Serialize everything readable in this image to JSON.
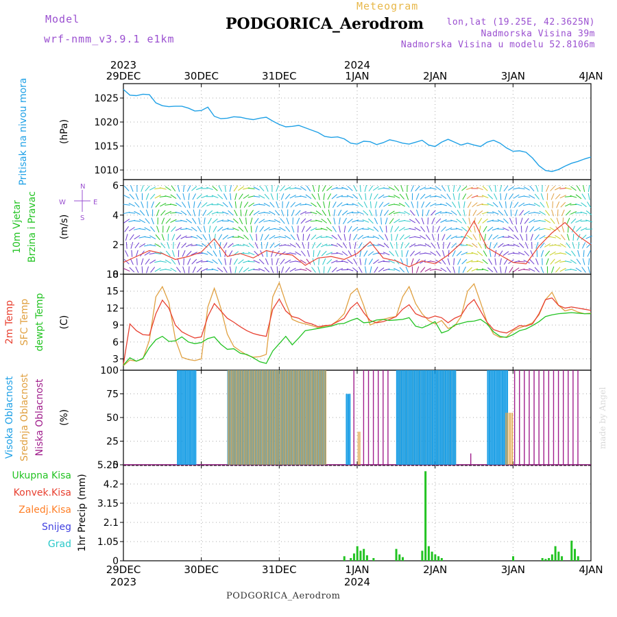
{
  "header": {
    "model_label": "Model",
    "model_value": "wrf-nmm_v3.9.1 e1km",
    "meteogram_label": "Meteogram",
    "station_title": "PODGORICA_Aerodrom",
    "lonlat": "lon,lat (19.25E, 42.3625N)",
    "altitude": "Nadmorska Visina 39m",
    "model_altitude": "Nadmorska Visina u modelu 52.8106m"
  },
  "footer": {
    "station": "PODGORICA_Aerodrom",
    "watermark": "made by Angel"
  },
  "colors": {
    "pressure": "#1ea0e6",
    "t2m": "#e84030",
    "tsfc": "#e0a040",
    "dewpt": "#22c322",
    "cloud_high": "#1ea0e6",
    "cloud_mid": "#e0a040",
    "cloud_low": "#a01e8c",
    "precip_total": "#22c322",
    "precip_conv": "#e84030",
    "precip_frozen": "#ff7f27",
    "snow": "#4040e0",
    "grad": "#28c8c8",
    "grid": "#aaaaaa"
  },
  "chart_data": [
    {
      "type": "line",
      "id": "pressure",
      "ylabel": "(hPa)",
      "side_labels": [
        {
          "text": "Pritisak na nivou mora",
          "color": "#1ea0e6"
        }
      ],
      "ylim": [
        1008,
        1028
      ],
      "yticks": [
        1010,
        1015,
        1020,
        1025
      ],
      "x_hours": [
        0,
        2,
        4,
        6,
        8,
        10,
        12,
        14,
        16,
        18,
        20,
        22,
        24,
        26,
        28,
        30,
        32,
        34,
        36,
        38,
        40,
        42,
        44,
        46,
        48,
        50,
        52,
        54,
        56,
        58,
        60,
        62,
        64,
        66,
        68,
        70,
        72,
        74,
        76,
        78,
        80,
        82,
        84,
        86,
        88,
        90,
        92,
        94,
        96,
        98,
        100,
        102,
        104,
        106,
        108,
        110,
        112,
        114,
        116,
        118,
        120,
        122,
        124,
        126,
        128,
        130,
        132,
        134,
        136,
        138,
        140,
        142,
        144
      ],
      "series": [
        {
          "values": [
            1026.8,
            1025.6,
            1025.5,
            1025.8,
            1025.7,
            1024.0,
            1023.4,
            1023.2,
            1023.3,
            1023.3,
            1022.9,
            1022.3,
            1022.4,
            1023.1,
            1021.2,
            1020.7,
            1020.8,
            1021.1,
            1021.0,
            1020.7,
            1020.5,
            1020.8,
            1021.0,
            1020.2,
            1019.5,
            1019.0,
            1019.1,
            1019.3,
            1018.8,
            1018.3,
            1017.8,
            1017.0,
            1016.8,
            1016.9,
            1016.5,
            1015.6,
            1015.4,
            1016.0,
            1015.9,
            1015.3,
            1015.7,
            1016.3,
            1016.0,
            1015.6,
            1015.4,
            1015.8,
            1016.2,
            1015.2,
            1014.9,
            1015.8,
            1016.4,
            1015.8,
            1015.2,
            1015.6,
            1015.2,
            1014.9,
            1015.8,
            1016.2,
            1015.6,
            1014.6,
            1013.9,
            1014.0,
            1013.7,
            1012.5,
            1010.9,
            1009.9,
            1009.7,
            1010.1,
            1010.8,
            1011.4,
            1011.8,
            1012.3,
            1012.7
          ]
        }
      ]
    },
    {
      "type": "line",
      "id": "wind",
      "ylabel": "(m/s)",
      "side_labels": [
        {
          "text": "10m Vjetar",
          "color": "#22c322"
        },
        {
          "text": "Brzina i Pravac",
          "color": "#22c322"
        }
      ],
      "compass": {
        "n": "N",
        "s": "S",
        "w": "W",
        "e": "E"
      },
      "ylim": [
        0,
        6.4
      ],
      "yticks": [
        0,
        2,
        4,
        6
      ],
      "x_hours": [
        0,
        4,
        8,
        12,
        16,
        20,
        24,
        28,
        32,
        36,
        40,
        44,
        48,
        52,
        56,
        60,
        64,
        68,
        72,
        76,
        80,
        84,
        88,
        92,
        96,
        100,
        104,
        108,
        112,
        116,
        120,
        124,
        128,
        132,
        136,
        140,
        144
      ],
      "series": [
        {
          "values": [
            0.8,
            1.2,
            1.6,
            1.4,
            1.0,
            1.2,
            1.5,
            2.4,
            1.2,
            1.4,
            1.1,
            1.6,
            1.4,
            1.3,
            0.6,
            1.1,
            1.2,
            1.0,
            1.4,
            2.2,
            1.1,
            0.9,
            0.5,
            0.9,
            0.7,
            1.3,
            2.1,
            3.6,
            1.8,
            1.3,
            0.8,
            0.7,
            1.9,
            2.8,
            3.5,
            2.6,
            2.0
          ]
        }
      ]
    },
    {
      "type": "line",
      "id": "temperature",
      "ylabel": "(C)",
      "side_labels": [
        {
          "text": "2m Temp",
          "color": "#e84030"
        },
        {
          "text": "SFC Temp",
          "color": "#e0a040"
        },
        {
          "text": "dewpt Temp",
          "color": "#22c322"
        }
      ],
      "ylim": [
        1,
        18
      ],
      "yticks": [
        3,
        6,
        9,
        12,
        15,
        18
      ],
      "x_hours": [
        0,
        2,
        4,
        6,
        8,
        10,
        12,
        14,
        16,
        18,
        20,
        22,
        24,
        26,
        28,
        30,
        32,
        34,
        36,
        38,
        40,
        42,
        44,
        46,
        48,
        50,
        52,
        54,
        56,
        58,
        60,
        62,
        64,
        66,
        68,
        70,
        72,
        74,
        76,
        78,
        80,
        82,
        84,
        86,
        88,
        90,
        92,
        94,
        96,
        98,
        100,
        102,
        104,
        106,
        108,
        110,
        112,
        114,
        116,
        118,
        120,
        122,
        124,
        126,
        128,
        130,
        132,
        134,
        136,
        138,
        140,
        142,
        144
      ],
      "series": [
        {
          "values": [
            2.0,
            9.2,
            8.0,
            7.3,
            7.2,
            11.0,
            13.4,
            12.0,
            9.0,
            7.8,
            7.2,
            6.7,
            6.9,
            10.5,
            12.8,
            11.5,
            10.2,
            9.5,
            8.7,
            8.0,
            7.5,
            7.2,
            7.0,
            11.8,
            13.6,
            11.5,
            10.5,
            10.2,
            9.5,
            9.2,
            8.7,
            8.9,
            9.0,
            9.6,
            10.2,
            12.0,
            13.0,
            11.2,
            9.8,
            9.4,
            9.6,
            10.0,
            10.5,
            11.8,
            12.6,
            11.0,
            10.5,
            10.2,
            10.6,
            10.3,
            9.4,
            10.2,
            10.7,
            12.5,
            13.5,
            11.5,
            9.5,
            8.2,
            7.8,
            7.6,
            8.2,
            8.9,
            8.8,
            9.2,
            11.0,
            13.5,
            13.8,
            12.5,
            12.0,
            12.2,
            12.0,
            11.8,
            11.6
          ]
        },
        {
          "values": [
            1.8,
            2.8,
            2.6,
            3.0,
            6.3,
            14.0,
            15.8,
            13.0,
            6.5,
            3.3,
            2.9,
            2.7,
            3.0,
            12.2,
            15.5,
            12.0,
            7.4,
            5.2,
            4.4,
            3.7,
            3.3,
            3.4,
            3.8,
            14.0,
            16.5,
            13.0,
            10.0,
            9.5,
            9.2,
            8.9,
            8.5,
            8.8,
            9.0,
            9.8,
            11.0,
            14.5,
            15.5,
            12.5,
            9.0,
            9.5,
            10.0,
            10.3,
            10.5,
            14.0,
            15.8,
            12.8,
            11.0,
            9.8,
            9.2,
            9.8,
            8.4,
            8.8,
            10.5,
            15.0,
            16.3,
            13.0,
            9.5,
            7.4,
            6.8,
            6.9,
            8.0,
            8.5,
            8.9,
            9.4,
            10.8,
            13.5,
            14.8,
            12.5,
            11.5,
            11.8,
            11.3,
            11.0,
            11.1
          ]
        },
        {
          "values": [
            1.9,
            3.2,
            2.6,
            3.1,
            5.0,
            6.4,
            7.0,
            6.1,
            6.2,
            6.9,
            6.0,
            5.7,
            5.9,
            6.6,
            6.9,
            5.6,
            4.7,
            4.8,
            4.0,
            3.8,
            3.2,
            2.5,
            2.2,
            4.4,
            5.7,
            7.0,
            5.5,
            6.7,
            8.0,
            8.2,
            8.4,
            8.6,
            8.8,
            9.2,
            9.3,
            9.8,
            10.2,
            9.4,
            9.5,
            9.9,
            10.0,
            9.8,
            9.9,
            10.0,
            10.3,
            8.8,
            8.5,
            9.0,
            9.6,
            7.6,
            8.0,
            9.0,
            9.3,
            9.6,
            9.7,
            10.0,
            9.2,
            7.8,
            7.0,
            6.8,
            7.3,
            8.0,
            8.3,
            8.9,
            9.6,
            10.5,
            10.8,
            11.0,
            11.1,
            11.2,
            11.1,
            11.0,
            11.0
          ]
        }
      ]
    },
    {
      "type": "bar",
      "id": "clouds",
      "ylabel": "(%)",
      "side_labels": [
        {
          "text": "Visoka Oblacnost",
          "color": "#1ea0e6"
        },
        {
          "text": "Srednja Oblacnost",
          "color": "#e0a040"
        },
        {
          "text": "Niska Oblacnost",
          "color": "#a01e8c"
        }
      ],
      "ylim": [
        0,
        100
      ],
      "yticks": [
        0,
        25,
        50,
        75,
        100
      ],
      "segments": [
        {
          "layer": "high",
          "from_h": 16.5,
          "to_h": 20.0,
          "value": 100
        },
        {
          "layer": "high",
          "from_h": 20.5,
          "to_h": 22.0,
          "value": 100
        },
        {
          "layer": "high",
          "from_h": 32.0,
          "to_h": 62.0,
          "value": 100
        },
        {
          "layer": "mid",
          "from_h": 32.0,
          "to_h": 62.0,
          "value": 100
        },
        {
          "layer": "high",
          "from_h": 68.5,
          "to_h": 69.5,
          "value": 75
        },
        {
          "layer": "mid",
          "from_h": 72.0,
          "to_h": 72.5,
          "value": 35
        },
        {
          "layer": "low",
          "from_h": 70.0,
          "to_h": 71.0,
          "value": 100
        },
        {
          "layer": "low",
          "from_h": 73.0,
          "to_h": 82.0,
          "value": 100
        },
        {
          "layer": "mid",
          "from_h": 84.0,
          "to_h": 102.0,
          "value": 100
        },
        {
          "layer": "high",
          "from_h": 84.0,
          "to_h": 102.0,
          "value": 100
        },
        {
          "layer": "low",
          "from_h": 106.5,
          "to_h": 107.0,
          "value": 12
        },
        {
          "layer": "high",
          "from_h": 112.0,
          "to_h": 118.0,
          "value": 100
        },
        {
          "layer": "mid",
          "from_h": 117.5,
          "to_h": 119.5,
          "value": 55
        },
        {
          "layer": "low",
          "from_h": 120.0,
          "to_h": 140.0,
          "value": 100
        }
      ]
    },
    {
      "type": "bar",
      "id": "precip",
      "ylabel": "1hr Precip (mm)",
      "side_labels": [
        {
          "text": "Ukupna Kisa",
          "color": "#22c322"
        },
        {
          "text": "Konvek.Kisa",
          "color": "#e84030"
        },
        {
          "text": "Zaledj.Kisa",
          "color": "#ff7f27"
        },
        {
          "text": "Snijeg",
          "color": "#4040e0"
        },
        {
          "text": "Grad",
          "color": "#28c8c8"
        }
      ],
      "ylim": [
        0,
        5.25
      ],
      "yticks": [
        0,
        1.05,
        2.1,
        3.15,
        4.2,
        5.25
      ],
      "bars": [
        {
          "h": 68,
          "total": 0.25
        },
        {
          "h": 70,
          "total": 0.15
        },
        {
          "h": 71,
          "total": 0.4
        },
        {
          "h": 72,
          "total": 0.8
        },
        {
          "h": 73,
          "total": 0.55
        },
        {
          "h": 74,
          "total": 0.65
        },
        {
          "h": 75,
          "total": 0.3
        },
        {
          "h": 77,
          "total": 0.15
        },
        {
          "h": 84,
          "total": 0.65
        },
        {
          "h": 85,
          "total": 0.35
        },
        {
          "h": 86,
          "total": 0.2
        },
        {
          "h": 92,
          "total": 0.55
        },
        {
          "h": 93,
          "total": 4.9
        },
        {
          "h": 94,
          "total": 0.8
        },
        {
          "h": 95,
          "total": 0.5
        },
        {
          "h": 96,
          "total": 0.35
        },
        {
          "h": 97,
          "total": 0.25
        },
        {
          "h": 98,
          "total": 0.15
        },
        {
          "h": 120,
          "total": 0.25
        },
        {
          "h": 129,
          "total": 0.15
        },
        {
          "h": 130,
          "total": 0.1
        },
        {
          "h": 131,
          "total": 0.15
        },
        {
          "h": 132,
          "total": 0.35
        },
        {
          "h": 133,
          "total": 0.8
        },
        {
          "h": 134,
          "total": 0.5
        },
        {
          "h": 135,
          "total": 0.25
        },
        {
          "h": 138,
          "total": 1.1
        },
        {
          "h": 139,
          "total": 0.65
        },
        {
          "h": 140,
          "total": 0.25
        }
      ]
    }
  ],
  "xaxis": {
    "days": [
      "29DEC",
      "30DEC",
      "31DEC",
      "1JAN",
      "2JAN",
      "3JAN",
      "4JAN"
    ],
    "year_top": [
      {
        "text": "2023",
        "day_index": 0
      },
      {
        "text": "2024",
        "day_index": 3
      }
    ],
    "year_bottom": [
      {
        "text": "2023",
        "day_index": 0
      },
      {
        "text": "2024",
        "day_index": 3
      }
    ]
  }
}
